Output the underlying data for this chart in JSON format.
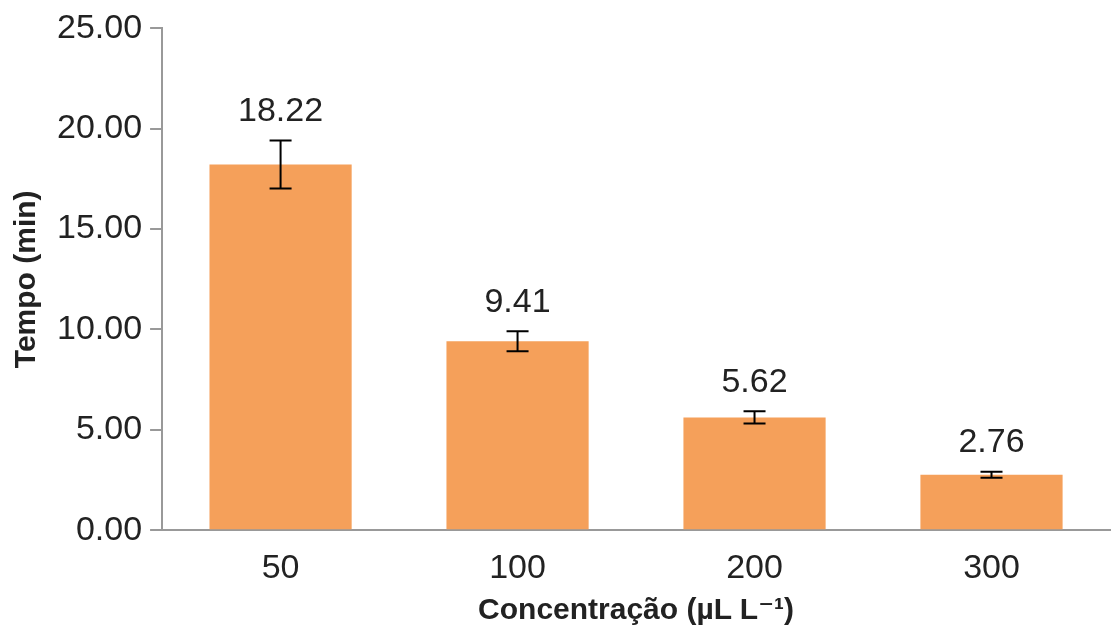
{
  "chart_data": {
    "type": "bar",
    "xlabel": "Concentração (µL L⁻¹)",
    "ylabel": "Tempo (min)",
    "categories": [
      "50",
      "100",
      "200",
      "300"
    ],
    "values": [
      18.22,
      9.41,
      5.62,
      2.76
    ],
    "errors": [
      1.2,
      0.5,
      0.3,
      0.15
    ],
    "color": "#f5a05a",
    "ylim": [
      0,
      25
    ],
    "yticks": [
      {
        "value": 0,
        "label": "0.00"
      },
      {
        "value": 5,
        "label": "5.00"
      },
      {
        "value": 10,
        "label": "10.00"
      },
      {
        "value": 15,
        "label": "15.00"
      },
      {
        "value": 20,
        "label": "20.00"
      },
      {
        "value": 25,
        "label": "25.00"
      }
    ],
    "data_labels": true,
    "grid": false,
    "legend": false
  }
}
